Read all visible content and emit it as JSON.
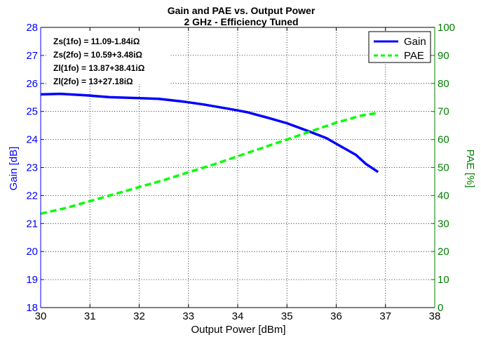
{
  "chart_data": {
    "type": "line",
    "title": "Gain and PAE vs. Output Power",
    "subtitle": "2 GHz - Efficiency Tuned",
    "xlabel": "Output Power [dBm]",
    "ylabel_left": "Gain [dB]",
    "ylabel_right": "PAE [%]",
    "xlim": [
      30,
      38
    ],
    "ylim_left": [
      18,
      28
    ],
    "ylim_right": [
      0,
      100
    ],
    "xticks": [
      "30",
      "31",
      "32",
      "33",
      "34",
      "35",
      "36",
      "37",
      "38"
    ],
    "yticks_left": [
      "18",
      "19",
      "20",
      "21",
      "22",
      "23",
      "24",
      "25",
      "26",
      "27",
      "28"
    ],
    "yticks_right": [
      "0",
      "10",
      "20",
      "30",
      "40",
      "50",
      "60",
      "70",
      "80",
      "90",
      "100"
    ],
    "grid": true,
    "legend_position": "top-right",
    "annotations": [
      "Zs(1fo) = 11.09-1.84iΩ",
      "Zs(2fo) = 10.59+3.48iΩ",
      "Zl(1fo) = 13.87+38.41iΩ",
      "Zl(2fo) = 13+27.18iΩ"
    ],
    "series": [
      {
        "name": "Gain",
        "axis": "left",
        "color": "#0000ff",
        "style": "solid",
        "x": [
          30.0,
          30.4,
          30.9,
          31.4,
          31.9,
          32.4,
          32.9,
          33.3,
          33.8,
          34.2,
          34.6,
          35.0,
          35.4,
          35.8,
          36.1,
          36.4,
          36.6,
          36.85
        ],
        "y": [
          25.61,
          25.63,
          25.58,
          25.51,
          25.48,
          25.45,
          25.35,
          25.25,
          25.1,
          24.97,
          24.78,
          24.58,
          24.32,
          24.05,
          23.75,
          23.45,
          23.13,
          22.84
        ]
      },
      {
        "name": "PAE",
        "axis": "right",
        "color": "#00ff00",
        "style": "dashed",
        "x": [
          30.0,
          30.5,
          31.0,
          31.5,
          32.0,
          32.5,
          33.0,
          33.5,
          34.0,
          34.5,
          35.0,
          35.5,
          36.0,
          36.5,
          36.85
        ],
        "y": [
          33.5,
          35.5,
          38.0,
          40.5,
          43.0,
          45.5,
          48.3,
          51.0,
          54.0,
          57.0,
          60.0,
          63.0,
          66.0,
          68.5,
          69.5
        ]
      }
    ]
  },
  "colors": {
    "gain": "#0000ff",
    "pae": "#00ff00",
    "left_axis": "#0000ff",
    "right_axis": "#008000",
    "grid": "#000000"
  }
}
